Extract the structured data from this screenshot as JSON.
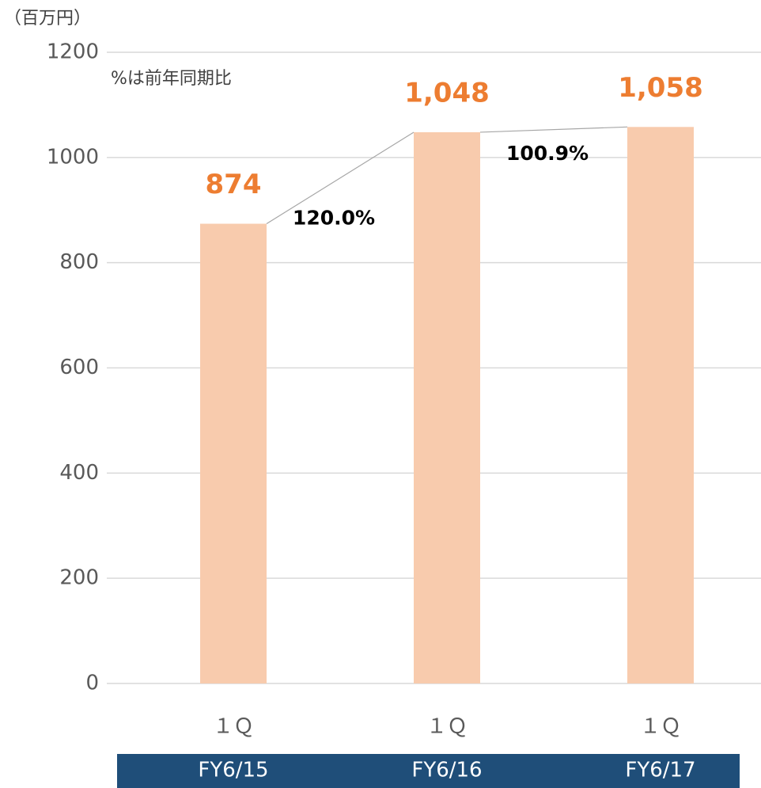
{
  "chart_data": {
    "type": "bar",
    "unit_label": "（百万円）",
    "note": "%は前年同期比",
    "categories": [
      "１Ｑ",
      "１Ｑ",
      "１Ｑ"
    ],
    "groups": [
      "FY6/15",
      "FY6/16",
      "FY6/17"
    ],
    "values": [
      874,
      1048,
      1058
    ],
    "value_labels": [
      "874",
      "1,048",
      "1,058"
    ],
    "growth_labels": [
      "120.0%",
      "100.9%"
    ],
    "color": "#f8cbad",
    "label_color": "#ed7d31",
    "group_band_color": "#1f4e79",
    "ylim": [
      0,
      1200
    ],
    "yticks": [
      0,
      200,
      400,
      600,
      800,
      1000,
      1200
    ],
    "grid": true
  }
}
